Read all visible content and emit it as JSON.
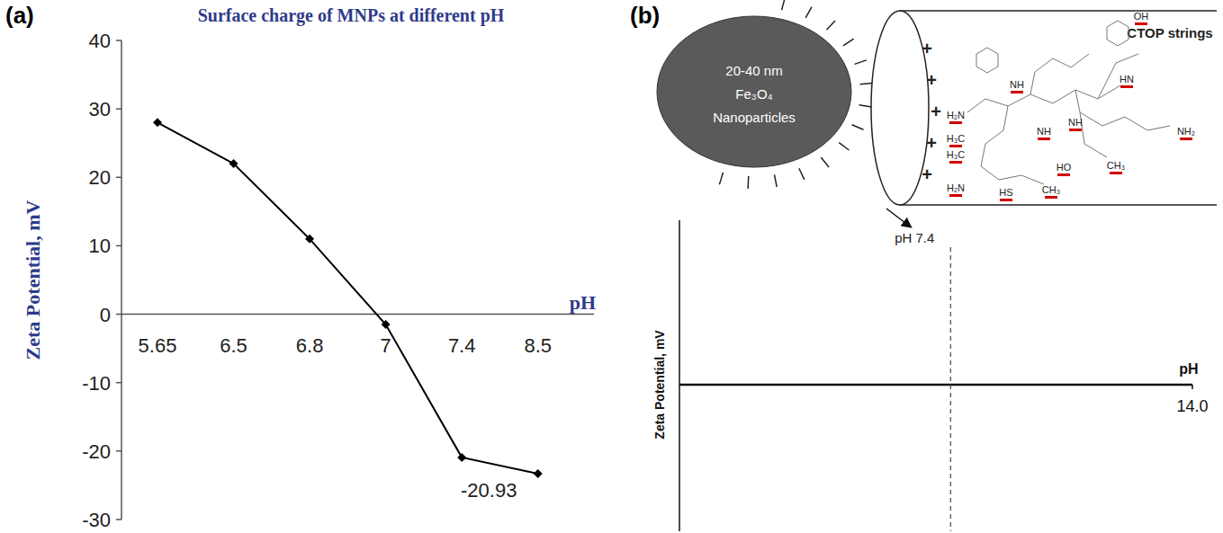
{
  "chart_data": [
    {
      "type": "line",
      "panel_label": "(a)",
      "title": "Surface charge of MNPs at different pH",
      "xlabel": "pH",
      "ylabel": "Zeta Potential, mV",
      "categories": [
        "5.65",
        "6.5",
        "6.8",
        "7",
        "7.4",
        "8.5"
      ],
      "values": [
        28,
        22,
        11,
        -1.5,
        -20.93,
        -23.3
      ],
      "value_labels": [
        null,
        null,
        null,
        null,
        "-20.93",
        null
      ],
      "color": "#000000",
      "marker": "diamond",
      "ylim": [
        -30,
        40
      ],
      "yticks": [
        -30,
        -20,
        -10,
        0,
        10,
        20,
        30,
        40
      ],
      "grid": false
    },
    {
      "type": "schematic",
      "panel_label": "(b)",
      "xlabel": "pH",
      "ylabel": "Zeta Potential, mV",
      "xlim": [
        0,
        14
      ],
      "xticks": [
        {
          "value": 14,
          "label": "14.0"
        }
      ],
      "tick_labels": "x",
      "reference_line": {
        "value": 7.4,
        "label": "pH 7.4"
      },
      "particle": {
        "size": "20-40 nm",
        "material": "Fe₃O₄",
        "name": "Nanoparticles"
      },
      "coating": {
        "label": "CTOP strings",
        "charge": "+",
        "atoms": [
          "OH",
          "H₂N",
          "NH",
          "HN",
          "NH",
          "H₃C",
          "H₃C",
          "NH₂",
          "CH₃",
          "HO",
          "H₂N",
          "NH",
          "HS",
          "CH₃"
        ]
      }
    }
  ]
}
